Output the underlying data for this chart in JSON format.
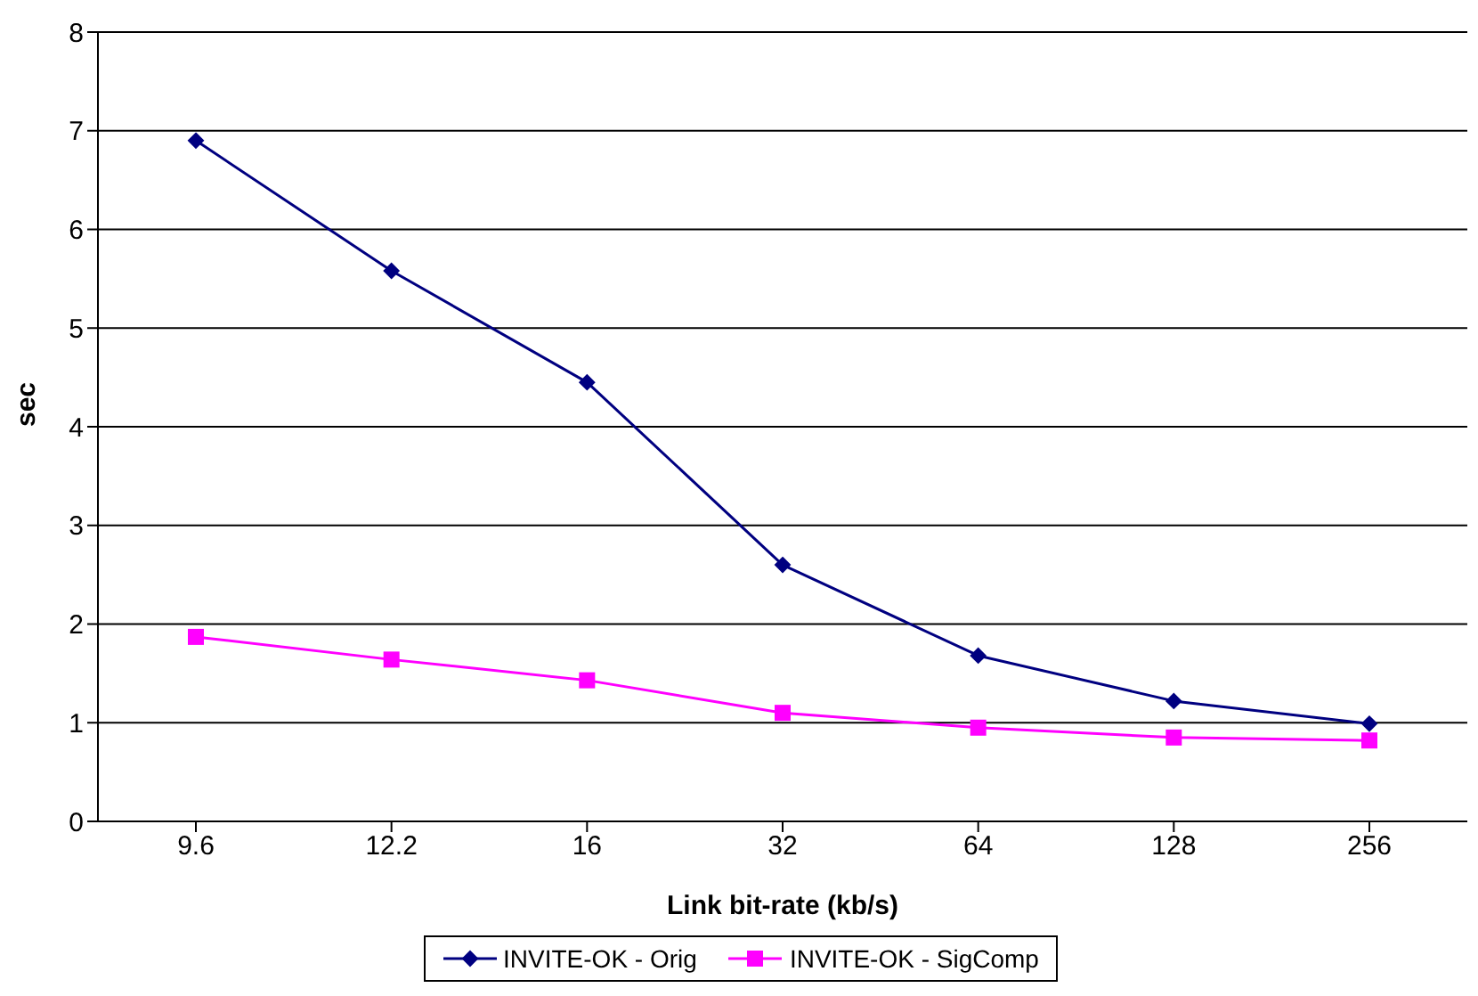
{
  "chart_data": {
    "type": "line",
    "xlabel": "Link bit-rate (kb/s)",
    "ylabel": "sec",
    "categories": [
      "9.6",
      "12.2",
      "16",
      "32",
      "64",
      "128",
      "256"
    ],
    "series": [
      {
        "name": "INVITE-OK - Orig",
        "color": "#000080",
        "marker": "diamond",
        "values": [
          6.9,
          5.58,
          4.45,
          2.6,
          1.68,
          1.22,
          0.99
        ]
      },
      {
        "name": "INVITE-OK - SigComp",
        "color": "#ff00ff",
        "marker": "square",
        "values": [
          1.87,
          1.64,
          1.43,
          1.1,
          0.95,
          0.85,
          0.82
        ]
      }
    ],
    "ylim": [
      0,
      8
    ],
    "yticks": [
      0,
      1,
      2,
      3,
      4,
      5,
      6,
      7,
      8
    ],
    "grid": "y",
    "legend": "bottom"
  }
}
